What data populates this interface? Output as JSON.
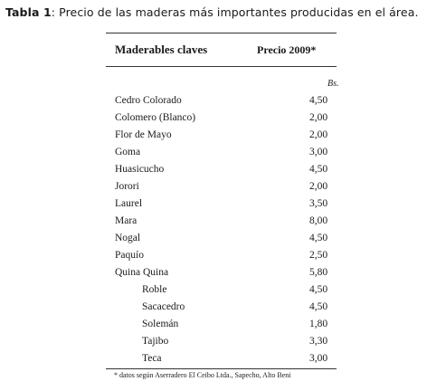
{
  "caption": {
    "label": "Tabla 1",
    "text": ":  Precio de las maderas más importantes producidas en el área."
  },
  "table": {
    "header": {
      "name": "Maderables claves",
      "price": "Precio 2009*"
    },
    "units": "Bs.",
    "rows": [
      {
        "name": "Cedro Colorado",
        "price": "4,50",
        "indent": false
      },
      {
        "name": "Colomero (Blanco)",
        "price": "2,00",
        "indent": false
      },
      {
        "name": "Flor de Mayo",
        "price": "2,00",
        "indent": false
      },
      {
        "name": "Goma",
        "price": "3,00",
        "indent": false
      },
      {
        "name": "Huasicucho",
        "price": "4,50",
        "indent": false
      },
      {
        "name": "Jorori",
        "price": "2,00",
        "indent": false
      },
      {
        "name": "Laurel",
        "price": "3,50",
        "indent": false
      },
      {
        "name": "Mara",
        "price": "8,00",
        "indent": false
      },
      {
        "name": "Nogal",
        "price": "4,50",
        "indent": false
      },
      {
        "name": "Paquío",
        "price": "2,50",
        "indent": false
      },
      {
        "name": "Quina Quina",
        "price": "5,80",
        "indent": false
      },
      {
        "name": "Roble",
        "price": "4,50",
        "indent": true
      },
      {
        "name": "Sacacedro",
        "price": "4,50",
        "indent": true
      },
      {
        "name": "Solemán",
        "price": "1,80",
        "indent": true
      },
      {
        "name": "Tajibo",
        "price": "3,30",
        "indent": true
      },
      {
        "name": "Teca",
        "price": "3,00",
        "indent": true
      }
    ]
  },
  "footnote": "* datos según Aserradero El Ceibo Ltda., Sapecho, Alto Beni"
}
